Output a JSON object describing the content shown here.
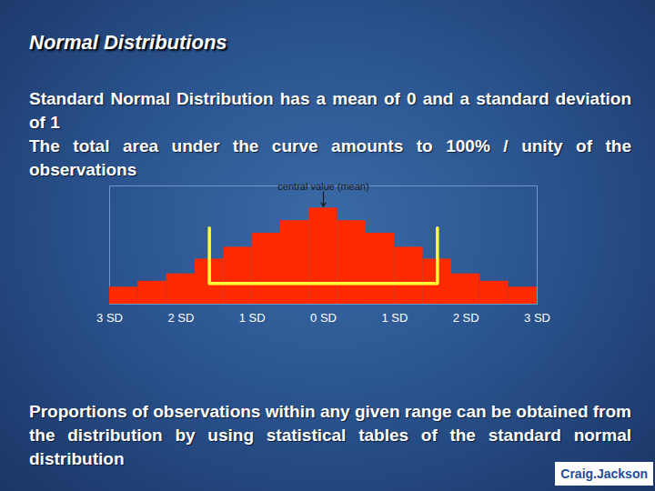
{
  "chart_data": {
    "type": "histogram",
    "title": "Normal Distributions",
    "text": [
      "Standard Normal Distribution has a mean of 0 and a standard deviation of 1",
      "The total area under the curve amounts to 100% / unity of the observations"
    ],
    "caption": "Proportions of observations within any given range can be obtained from the distribution by using statistical tables of the standard normal distribution",
    "logo": "Craig.Jackson",
    "bins": [
      -3,
      -2.6,
      -2.2,
      -1.8,
      -1.4,
      -1,
      -0.6,
      -0.2,
      0.2,
      0.6,
      1,
      1.4,
      1.8,
      2.2,
      2.6,
      3
    ],
    "values": [
      23,
      31,
      41,
      61,
      77,
      96,
      113,
      130,
      113,
      96,
      77,
      61,
      41,
      31,
      23
    ],
    "color": "#ff2a00",
    "xlim": [
      -3,
      3
    ],
    "xticks": [
      {
        "value": -3,
        "label": "3 SD"
      },
      {
        "value": -2,
        "label": "2 SD"
      },
      {
        "value": -1,
        "label": "1 SD"
      },
      {
        "value": 0,
        "label": "0 SD"
      },
      {
        "value": 1,
        "label": "1 SD"
      },
      {
        "value": 2,
        "label": "2 SD"
      },
      {
        "value": 3,
        "label": "3 SD"
      }
    ],
    "ylim": [
      0,
      160
    ],
    "tick_labels": "x",
    "grid": false,
    "bracket": {
      "x": [
        -1.6,
        1.6
      ],
      "y": [
        28,
        103
      ],
      "color": "#ffff33"
    },
    "annotation": {
      "text": "central value (mean)",
      "x": 0,
      "y": 152,
      "arrow_to": 132
    }
  }
}
